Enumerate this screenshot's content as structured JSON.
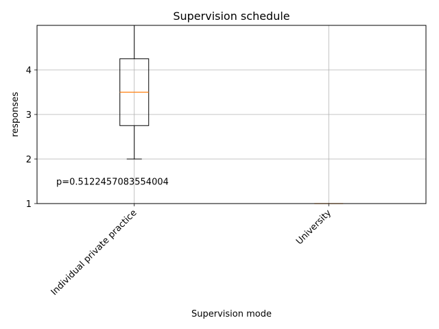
{
  "chart_data": {
    "type": "boxplot",
    "title": "Supervision schedule",
    "xlabel": "Supervision mode",
    "ylabel": "responses",
    "categories": [
      "Individual private practice",
      "University"
    ],
    "boxes": [
      {
        "category": "Individual private practice",
        "whisker_low": 2,
        "q1": 2.75,
        "median": 3.5,
        "q3": 4.25,
        "whisker_high": 5
      },
      {
        "category": "University",
        "whisker_low": 1,
        "q1": 1,
        "median": 1,
        "q3": 1,
        "whisker_high": 1
      }
    ],
    "ylim": [
      1,
      5
    ],
    "yticks": [
      1,
      2,
      3,
      4
    ],
    "grid": true,
    "annotation": {
      "text": "p=0.5122457083554004",
      "x": 0.5,
      "y": 1.5
    },
    "colors": {
      "box": "#000000",
      "median": "#ff7f0e",
      "grid": "#b0b0b0"
    }
  }
}
